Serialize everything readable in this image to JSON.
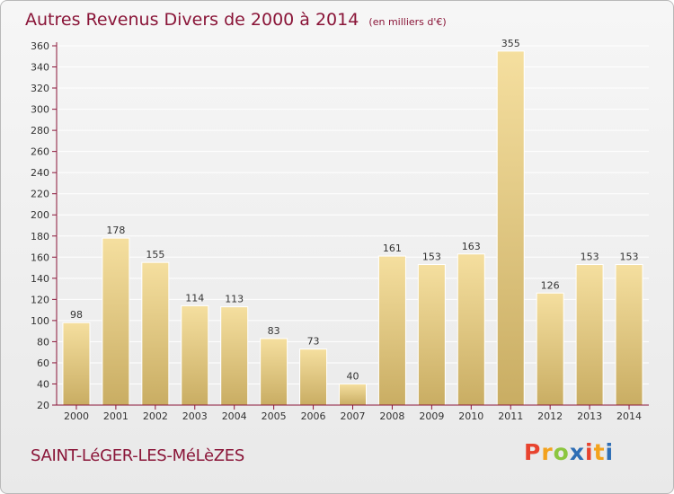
{
  "header": {
    "title": "Autres Revenus Divers de 2000 à 2014",
    "subtitle": "(en milliers d'€)"
  },
  "footer": {
    "town": "SAINT-LéGER-LES-MéLèZES",
    "brand": "Proxiti",
    "brand_colors": [
      "#e8432e",
      "#f3a21d",
      "#8cc63f",
      "#2e6eb5",
      "#e8432e",
      "#f3a21d",
      "#2e6eb5"
    ]
  },
  "colors": {
    "title": "#8a1538",
    "bar_light": "#f5df9f",
    "bar_dark": "#c9ad63",
    "axis": "#8a1538",
    "grid": "#ffffff"
  },
  "chart_data": {
    "type": "bar",
    "title": "Autres Revenus Divers de 2000 à 2014",
    "subtitle": "(en milliers d'€)",
    "categories": [
      "2000",
      "2001",
      "2002",
      "2003",
      "2004",
      "2005",
      "2006",
      "2007",
      "2008",
      "2009",
      "2010",
      "2011",
      "2012",
      "2013",
      "2014"
    ],
    "values": [
      98,
      178,
      155,
      114,
      113,
      83,
      73,
      40,
      161,
      153,
      163,
      355,
      126,
      153,
      153
    ],
    "ylim": [
      20,
      360
    ],
    "yticks": [
      20,
      40,
      60,
      80,
      100,
      120,
      140,
      160,
      180,
      200,
      220,
      240,
      260,
      280,
      300,
      320,
      340,
      360
    ],
    "grid": true,
    "legend": "none"
  }
}
